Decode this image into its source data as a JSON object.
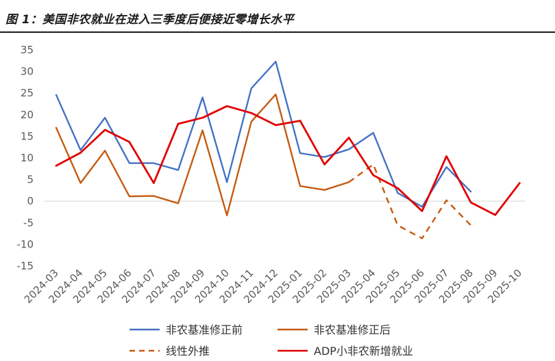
{
  "chart_data": {
    "type": "line",
    "title": "图 1：美国非农就业在进入三季度后便接近零增长水平",
    "xlabel": "",
    "ylabel": "",
    "categories": [
      "2024-03",
      "2024-04",
      "2024-05",
      "2024-06",
      "2024-07",
      "2024-08",
      "2024-09",
      "2024-10",
      "2024-11",
      "2024-12",
      "2025-01",
      "2025-02",
      "2025-03",
      "2025-04",
      "2025-05",
      "2025-06",
      "2025-07",
      "2025-08",
      "2025-09",
      "2025-10"
    ],
    "ylim": [
      -15,
      35
    ],
    "yticks": [
      35,
      30,
      25,
      20,
      15,
      10,
      5,
      0,
      -5,
      -10,
      -15
    ],
    "grid": false,
    "legend_position": "bottom",
    "series": [
      {
        "name": "非农基准修正前",
        "color": "#4472C4",
        "dash": "solid",
        "values": [
          24.6,
          11.8,
          19.3,
          8.8,
          8.8,
          7.2,
          24.0,
          4.4,
          26.1,
          32.3,
          11.1,
          10.2,
          12.0,
          15.8,
          1.9,
          -1.3,
          7.9,
          2.2,
          null,
          null
        ]
      },
      {
        "name": "非农基准修正后",
        "color": "#C55A11",
        "dash": "solid",
        "values": [
          17.0,
          4.2,
          11.7,
          1.1,
          1.2,
          -0.5,
          16.4,
          -3.3,
          18.4,
          24.7,
          3.5,
          2.6,
          4.4,
          null,
          null,
          null,
          null,
          null,
          null,
          null
        ]
      },
      {
        "name": "线性外推",
        "color": "#C55A11",
        "dash": "dashed",
        "values": [
          null,
          null,
          null,
          null,
          null,
          null,
          null,
          null,
          null,
          null,
          null,
          null,
          4.4,
          8.5,
          -5.6,
          -8.6,
          0.2,
          -5.6,
          null,
          null
        ]
      },
      {
        "name": "ADP小非农新增就业",
        "color": "#E00000",
        "dash": "solid",
        "values": [
          8.2,
          11.2,
          16.5,
          13.7,
          4.2,
          17.9,
          19.3,
          22.0,
          20.4,
          17.6,
          18.6,
          8.5,
          14.7,
          6.0,
          3.0,
          -2.3,
          10.4,
          -0.3,
          -3.2,
          4.2
        ]
      }
    ]
  }
}
